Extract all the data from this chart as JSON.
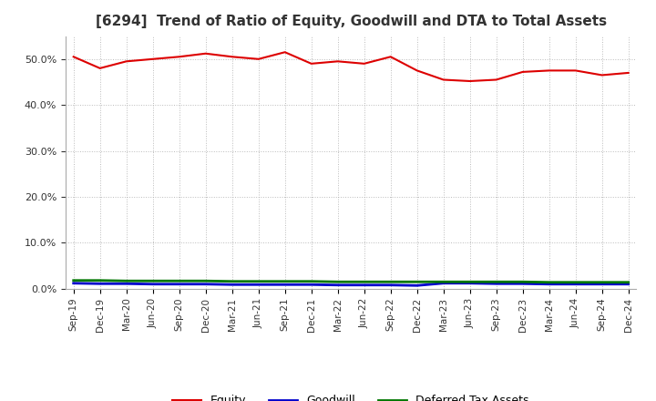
{
  "title": "[6294]  Trend of Ratio of Equity, Goodwill and DTA to Total Assets",
  "xlabels": [
    "Sep-19",
    "Dec-19",
    "Mar-20",
    "Jun-20",
    "Sep-20",
    "Dec-20",
    "Mar-21",
    "Jun-21",
    "Sep-21",
    "Dec-21",
    "Mar-22",
    "Jun-22",
    "Sep-22",
    "Dec-22",
    "Mar-23",
    "Jun-23",
    "Sep-23",
    "Dec-23",
    "Mar-24",
    "Jun-24",
    "Sep-24",
    "Dec-24"
  ],
  "equity": [
    50.5,
    48.0,
    49.5,
    50.0,
    50.5,
    51.2,
    50.5,
    50.0,
    51.5,
    49.0,
    49.5,
    49.0,
    50.5,
    47.5,
    45.5,
    45.2,
    45.5,
    47.2,
    47.5,
    47.5,
    46.5,
    47.0
  ],
  "goodwill": [
    1.2,
    1.1,
    1.1,
    1.0,
    1.0,
    1.0,
    0.9,
    0.9,
    0.9,
    0.9,
    0.8,
    0.8,
    0.8,
    0.7,
    1.2,
    1.2,
    1.1,
    1.1,
    1.0,
    1.0,
    1.0,
    1.0
  ],
  "dta": [
    1.8,
    1.8,
    1.7,
    1.7,
    1.7,
    1.7,
    1.6,
    1.6,
    1.6,
    1.6,
    1.5,
    1.5,
    1.5,
    1.5,
    1.5,
    1.5,
    1.5,
    1.5,
    1.4,
    1.4,
    1.4,
    1.4
  ],
  "equity_color": "#dd0000",
  "goodwill_color": "#0000cc",
  "dta_color": "#007700",
  "ylim": [
    0,
    55
  ],
  "yticks": [
    0,
    10,
    20,
    30,
    40,
    50
  ],
  "background_color": "#ffffff",
  "grid_color": "#aaaaaa",
  "title_fontsize": 11,
  "legend_labels": [
    "Equity",
    "Goodwill",
    "Deferred Tax Assets"
  ]
}
